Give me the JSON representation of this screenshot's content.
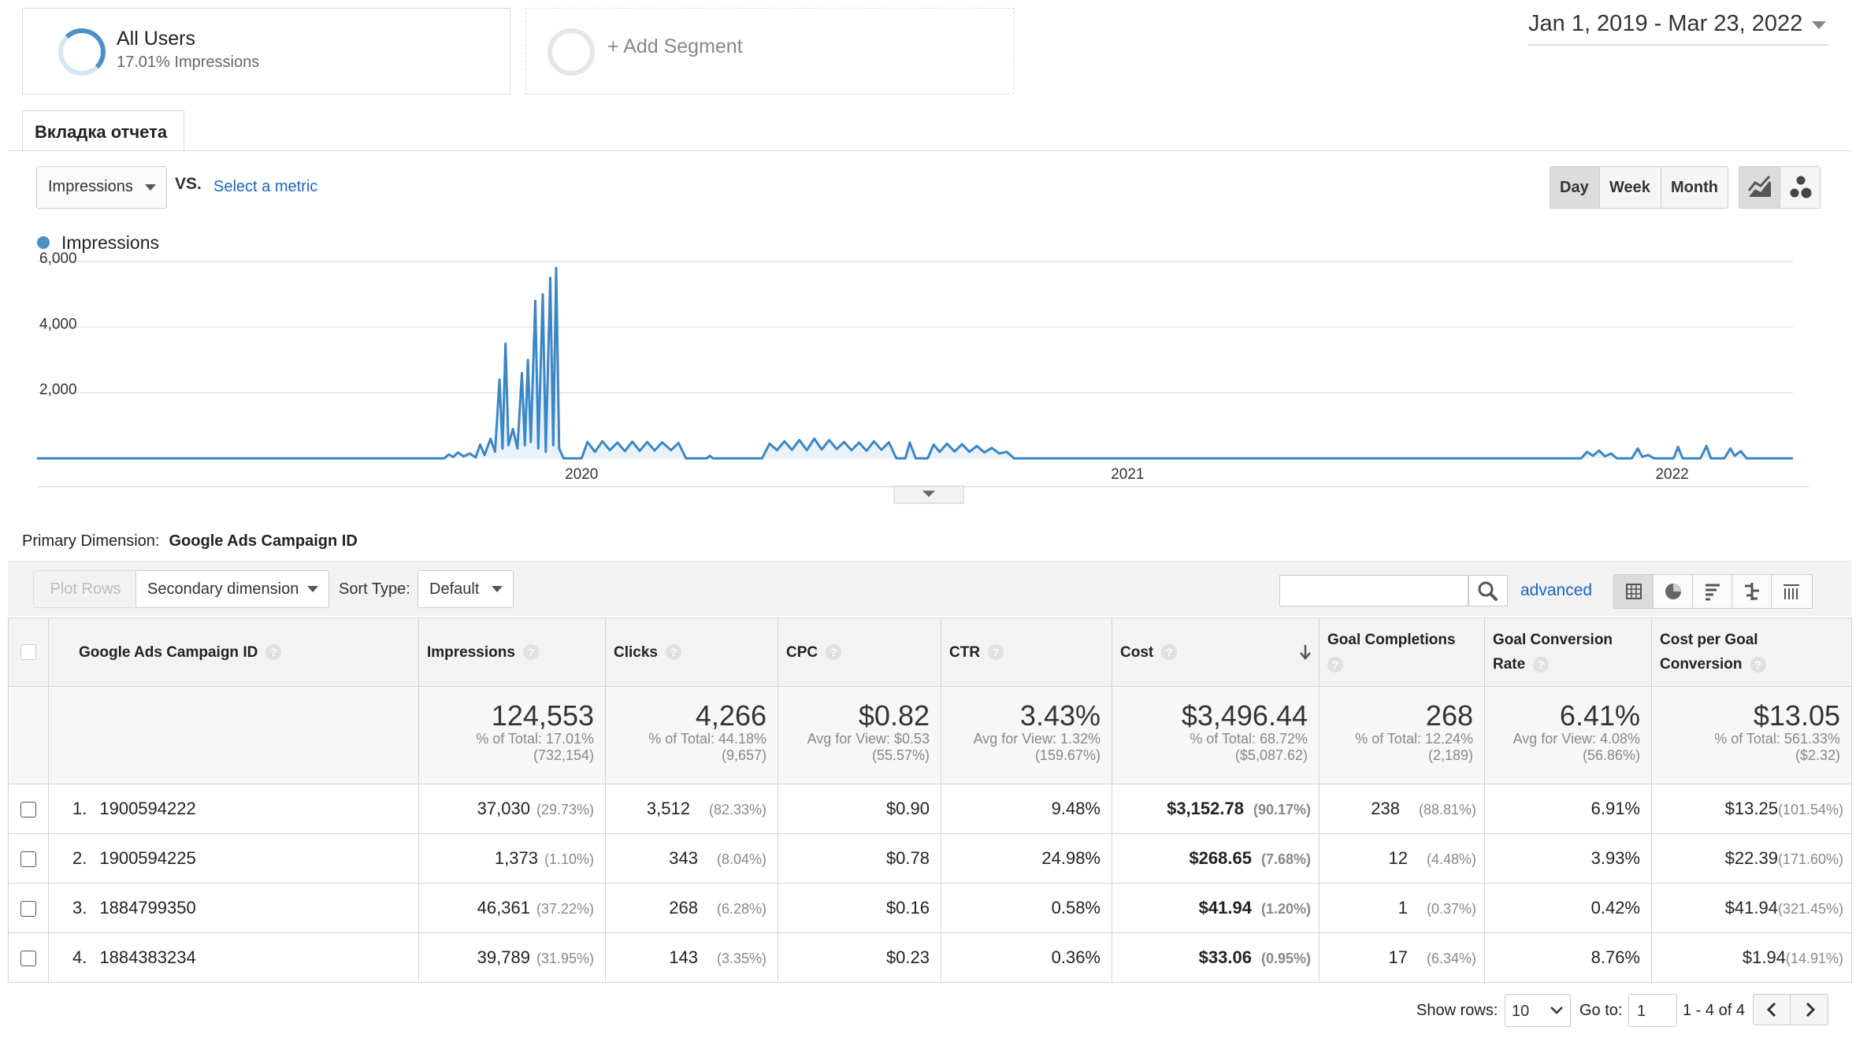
{
  "segments": {
    "all_users": {
      "name": "All Users",
      "sub": "17.01% Impressions"
    },
    "add_segment": "+ Add Segment"
  },
  "date_range": "Jan 1, 2019 - Mar 23, 2022",
  "report_tab": "Вкладка отчета",
  "metric_picker": {
    "metric": "Impressions",
    "vs": "VS.",
    "select": "Select a metric"
  },
  "granularity": {
    "day": "Day",
    "week": "Week",
    "month": "Month",
    "active": "Day"
  },
  "chart_data": {
    "type": "line",
    "legend": "Impressions",
    "series_color": "#4a90c8",
    "ylim": [
      0,
      6000
    ],
    "y_ticks": [
      "6,000",
      "4,000",
      "2,000"
    ],
    "x_ticks": [
      "2020",
      "2021",
      "2022"
    ],
    "grid": true,
    "x_range": [
      "2019-01-01",
      "2022-03-23"
    ],
    "series": [
      {
        "name": "Impressions",
        "points": [
          [
            "2019-01-01",
            0
          ],
          [
            "2019-10-01",
            0
          ],
          [
            "2019-10-04",
            120
          ],
          [
            "2019-10-07",
            40
          ],
          [
            "2019-10-10",
            180
          ],
          [
            "2019-10-14",
            60
          ],
          [
            "2019-10-18",
            150
          ],
          [
            "2019-10-22",
            30
          ],
          [
            "2019-10-25",
            420
          ],
          [
            "2019-10-28",
            100
          ],
          [
            "2019-11-01",
            600
          ],
          [
            "2019-11-04",
            200
          ],
          [
            "2019-11-07",
            2400
          ],
          [
            "2019-11-09",
            300
          ],
          [
            "2019-11-11",
            3500
          ],
          [
            "2019-11-13",
            400
          ],
          [
            "2019-11-16",
            900
          ],
          [
            "2019-11-19",
            300
          ],
          [
            "2019-11-22",
            2600
          ],
          [
            "2019-11-24",
            400
          ],
          [
            "2019-11-26",
            3000
          ],
          [
            "2019-11-28",
            500
          ],
          [
            "2019-12-01",
            4800
          ],
          [
            "2019-12-03",
            300
          ],
          [
            "2019-12-06",
            5000
          ],
          [
            "2019-12-08",
            200
          ],
          [
            "2019-12-11",
            5500
          ],
          [
            "2019-12-13",
            400
          ],
          [
            "2019-12-15",
            5800
          ],
          [
            "2019-12-17",
            300
          ],
          [
            "2019-12-20",
            0
          ],
          [
            "2020-01-01",
            0
          ],
          [
            "2020-01-05",
            500
          ],
          [
            "2020-01-10",
            200
          ],
          [
            "2020-01-15",
            520
          ],
          [
            "2020-01-20",
            250
          ],
          [
            "2020-01-25",
            480
          ],
          [
            "2020-01-30",
            220
          ],
          [
            "2020-02-04",
            510
          ],
          [
            "2020-02-09",
            230
          ],
          [
            "2020-02-14",
            500
          ],
          [
            "2020-02-19",
            240
          ],
          [
            "2020-02-24",
            490
          ],
          [
            "2020-03-01",
            250
          ],
          [
            "2020-03-06",
            470
          ],
          [
            "2020-03-11",
            0
          ],
          [
            "2020-03-25",
            0
          ],
          [
            "2020-03-27",
            80
          ],
          [
            "2020-03-29",
            0
          ],
          [
            "2020-05-01",
            0
          ],
          [
            "2020-05-06",
            450
          ],
          [
            "2020-05-11",
            250
          ],
          [
            "2020-05-16",
            520
          ],
          [
            "2020-05-21",
            260
          ],
          [
            "2020-05-26",
            560
          ],
          [
            "2020-05-31",
            250
          ],
          [
            "2020-06-05",
            600
          ],
          [
            "2020-06-10",
            270
          ],
          [
            "2020-06-15",
            560
          ],
          [
            "2020-06-20",
            280
          ],
          [
            "2020-06-25",
            500
          ],
          [
            "2020-06-30",
            250
          ],
          [
            "2020-07-05",
            480
          ],
          [
            "2020-07-10",
            230
          ],
          [
            "2020-07-15",
            520
          ],
          [
            "2020-07-20",
            260
          ],
          [
            "2020-07-25",
            490
          ],
          [
            "2020-07-30",
            0
          ],
          [
            "2020-08-05",
            0
          ],
          [
            "2020-08-08",
            480
          ],
          [
            "2020-08-12",
            0
          ],
          [
            "2020-08-20",
            0
          ],
          [
            "2020-08-24",
            420
          ],
          [
            "2020-08-28",
            200
          ],
          [
            "2020-09-02",
            450
          ],
          [
            "2020-09-07",
            210
          ],
          [
            "2020-09-12",
            430
          ],
          [
            "2020-09-17",
            200
          ],
          [
            "2020-09-22",
            380
          ],
          [
            "2020-09-27",
            180
          ],
          [
            "2020-10-02",
            320
          ],
          [
            "2020-10-07",
            150
          ],
          [
            "2020-10-12",
            200
          ],
          [
            "2020-10-17",
            0
          ],
          [
            "2021-11-01",
            0
          ],
          [
            "2021-11-05",
            200
          ],
          [
            "2021-11-09",
            80
          ],
          [
            "2021-11-13",
            240
          ],
          [
            "2021-11-17",
            60
          ],
          [
            "2021-11-21",
            150
          ],
          [
            "2021-11-25",
            0
          ],
          [
            "2021-12-05",
            0
          ],
          [
            "2021-12-09",
            300
          ],
          [
            "2021-12-12",
            50
          ],
          [
            "2021-12-16",
            100
          ],
          [
            "2021-12-20",
            0
          ],
          [
            "2022-01-02",
            0
          ],
          [
            "2022-01-05",
            350
          ],
          [
            "2022-01-08",
            0
          ],
          [
            "2022-01-20",
            0
          ],
          [
            "2022-01-24",
            380
          ],
          [
            "2022-01-27",
            0
          ],
          [
            "2022-02-05",
            0
          ],
          [
            "2022-02-09",
            300
          ],
          [
            "2022-02-12",
            80
          ],
          [
            "2022-02-16",
            220
          ],
          [
            "2022-02-20",
            0
          ],
          [
            "2022-03-23",
            0
          ]
        ]
      }
    ]
  },
  "primary_dimension": {
    "label": "Primary Dimension:",
    "value": "Google Ads Campaign ID"
  },
  "toolbar": {
    "plot_rows": "Plot Rows",
    "secondary_dimension": "Secondary dimension",
    "sort_type_label": "Sort Type:",
    "sort_type": "Default",
    "advanced": "advanced"
  },
  "table": {
    "headers": {
      "campaign": "Google Ads Campaign ID",
      "impressions": "Impressions",
      "clicks": "Clicks",
      "cpc": "CPC",
      "ctr": "CTR",
      "cost": "Cost",
      "goal_completions": "Goal Completions",
      "goal_conversion_rate": "Goal Conversion Rate",
      "cost_per_goal_conversion": "Cost per Goal Conversion"
    },
    "totals": {
      "impressions": {
        "value": "124,553",
        "note": "% of Total: 17.01%",
        "base": "(732,154)"
      },
      "clicks": {
        "value": "4,266",
        "note": "% of Total: 44.18%",
        "base": "(9,657)"
      },
      "cpc": {
        "value": "$0.82",
        "note": "Avg for View: $0.53",
        "base": "(55.57%)"
      },
      "ctr": {
        "value": "3.43%",
        "note": "Avg for View: 1.32%",
        "base": "(159.67%)"
      },
      "cost": {
        "value": "$3,496.44",
        "note": "% of Total: 68.72%",
        "base": "($5,087.62)"
      },
      "goal_completions": {
        "value": "268",
        "note": "% of Total: 12.24%",
        "base": "(2,189)"
      },
      "goal_conversion_rate": {
        "value": "6.41%",
        "note": "Avg for View: 4.08%",
        "base": "(56.86%)"
      },
      "cost_per_goal_conversion": {
        "value": "$13.05",
        "note": "% of Total: 561.33%",
        "base": "($2.32)"
      }
    },
    "rows": [
      {
        "index": "1.",
        "id": "1900594222",
        "impressions": "37,030",
        "impressions_pct": "(29.73%)",
        "clicks": "3,512",
        "clicks_pct": "(82.33%)",
        "cpc": "$0.90",
        "ctr": "9.48%",
        "cost": "$3,152.78",
        "cost_pct": "(90.17%)",
        "goals": "238",
        "goals_pct": "(88.81%)",
        "conv_rate": "6.91%",
        "cpg": "$13.25",
        "cpg_pct": "(101.54%)"
      },
      {
        "index": "2.",
        "id": "1900594225",
        "impressions": "1,373",
        "impressions_pct": "(1.10%)",
        "clicks": "343",
        "clicks_pct": "(8.04%)",
        "cpc": "$0.78",
        "ctr": "24.98%",
        "cost": "$268.65",
        "cost_pct": "(7.68%)",
        "goals": "12",
        "goals_pct": "(4.48%)",
        "conv_rate": "3.93%",
        "cpg": "$22.39",
        "cpg_pct": "(171.60%)"
      },
      {
        "index": "3.",
        "id": "1884799350",
        "impressions": "46,361",
        "impressions_pct": "(37.22%)",
        "clicks": "268",
        "clicks_pct": "(6.28%)",
        "cpc": "$0.16",
        "ctr": "0.58%",
        "cost": "$41.94",
        "cost_pct": "(1.20%)",
        "goals": "1",
        "goals_pct": "(0.37%)",
        "conv_rate": "0.42%",
        "cpg": "$41.94",
        "cpg_pct": "(321.45%)"
      },
      {
        "index": "4.",
        "id": "1884383234",
        "impressions": "39,789",
        "impressions_pct": "(31.95%)",
        "clicks": "143",
        "clicks_pct": "(3.35%)",
        "cpc": "$0.23",
        "ctr": "0.36%",
        "cost": "$33.06",
        "cost_pct": "(0.95%)",
        "goals": "17",
        "goals_pct": "(6.34%)",
        "conv_rate": "8.76%",
        "cpg": "$1.94",
        "cpg_pct": "(14.91%)"
      }
    ]
  },
  "pagination": {
    "show_rows_label": "Show rows:",
    "show_rows": "10",
    "goto_label": "Go to:",
    "goto_value": "1",
    "range": "1 - 4 of 4"
  },
  "icons": [
    "help-icon",
    "search-icon",
    "sort-desc-icon",
    "line-chart-icon",
    "motion-chart-icon",
    "table-view-icon",
    "pie-view-icon",
    "bar-view-icon",
    "comparison-view-icon",
    "pivot-view-icon",
    "chevron-left-icon",
    "chevron-right-icon",
    "collapse-chart-icon"
  ]
}
